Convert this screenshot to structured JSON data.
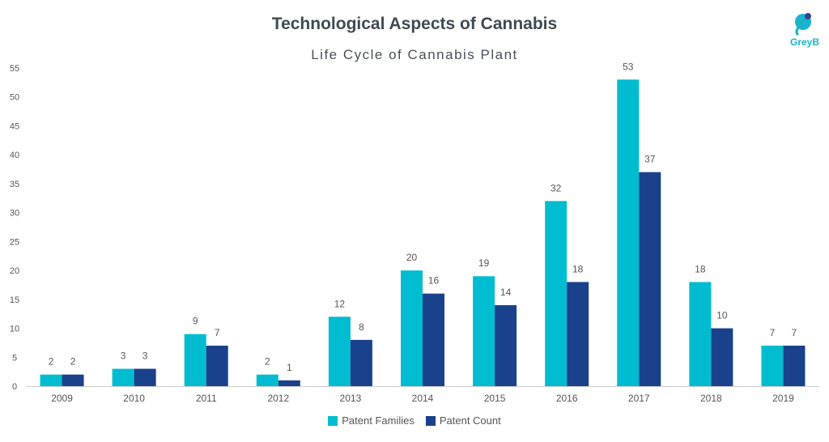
{
  "logo": {
    "icon": "greyb-logo-icon",
    "text": "GreyB",
    "color": "#1ab3c9"
  },
  "chart_data": {
    "type": "bar",
    "title": "Technological Aspects of Cannabis",
    "subtitle": "Life Cycle of Cannabis Plant",
    "categories": [
      "2009",
      "2010",
      "2011",
      "2012",
      "2013",
      "2014",
      "2015",
      "2016",
      "2017",
      "2018",
      "2019"
    ],
    "series": [
      {
        "name": "Patent Families",
        "color": "#00bcd0",
        "values": [
          2,
          3,
          9,
          2,
          12,
          20,
          19,
          32,
          53,
          18,
          7
        ]
      },
      {
        "name": "Patent Count",
        "color": "#1a418c",
        "values": [
          2,
          3,
          7,
          1,
          8,
          16,
          14,
          18,
          37,
          10,
          7
        ]
      }
    ],
    "ylim": [
      0,
      55
    ],
    "yticks": [
      0,
      5,
      10,
      15,
      20,
      25,
      30,
      35,
      40,
      45,
      50,
      55
    ],
    "grid": false,
    "legend": "bottom-center",
    "data_labels": true
  }
}
